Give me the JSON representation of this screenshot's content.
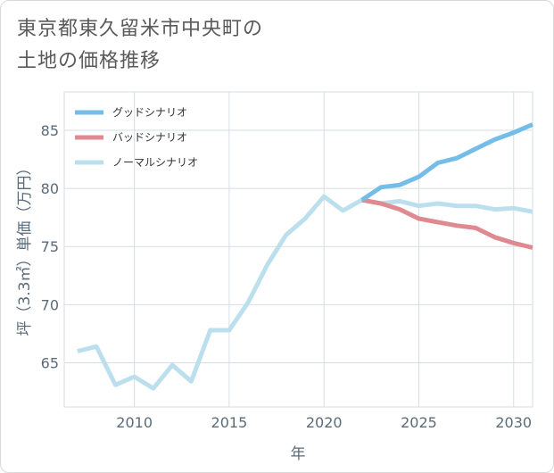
{
  "title": {
    "line1": "東京都東久留米市中央町の",
    "line2": "土地の価格推移"
  },
  "chart_data": {
    "type": "line",
    "xlabel": "年",
    "ylabel": "坪（3.3㎡）単価（万円）",
    "xlim": [
      2006.3,
      2031
    ],
    "ylim": [
      61.2,
      88.3
    ],
    "xticks": [
      2010,
      2015,
      2020,
      2025,
      2030
    ],
    "yticks": [
      65,
      70,
      75,
      80,
      85
    ],
    "grid": true,
    "legend_position": "top-left",
    "series": [
      {
        "name": "グッドシナリオ",
        "color": "#74bde9",
        "x": [
          2022,
          2023,
          2024,
          2025,
          2026,
          2027,
          2028,
          2029,
          2030,
          2031
        ],
        "values": [
          79.0,
          80.1,
          80.3,
          81.0,
          82.2,
          82.6,
          83.4,
          84.2,
          84.8,
          85.5
        ]
      },
      {
        "name": "バッドシナリオ",
        "color": "#de8a90",
        "x": [
          2022,
          2023,
          2024,
          2025,
          2026,
          2027,
          2028,
          2029,
          2030,
          2031
        ],
        "values": [
          79.0,
          78.7,
          78.2,
          77.4,
          77.1,
          76.8,
          76.6,
          75.8,
          75.3,
          74.9
        ]
      },
      {
        "name": "ノーマルシナリオ",
        "color": "#bcdfee",
        "x": [
          2007,
          2008,
          2009,
          2010,
          2011,
          2012,
          2013,
          2014,
          2015,
          2016,
          2017,
          2018,
          2019,
          2020,
          2021,
          2022,
          2023,
          2024,
          2025,
          2026,
          2027,
          2028,
          2029,
          2030,
          2031
        ],
        "values": [
          66.0,
          66.4,
          63.1,
          63.8,
          62.8,
          64.8,
          63.4,
          67.8,
          67.8,
          70.2,
          73.4,
          76.0,
          77.4,
          79.3,
          78.1,
          79.0,
          78.7,
          78.9,
          78.5,
          78.7,
          78.5,
          78.5,
          78.2,
          78.3,
          78.0
        ]
      }
    ]
  }
}
